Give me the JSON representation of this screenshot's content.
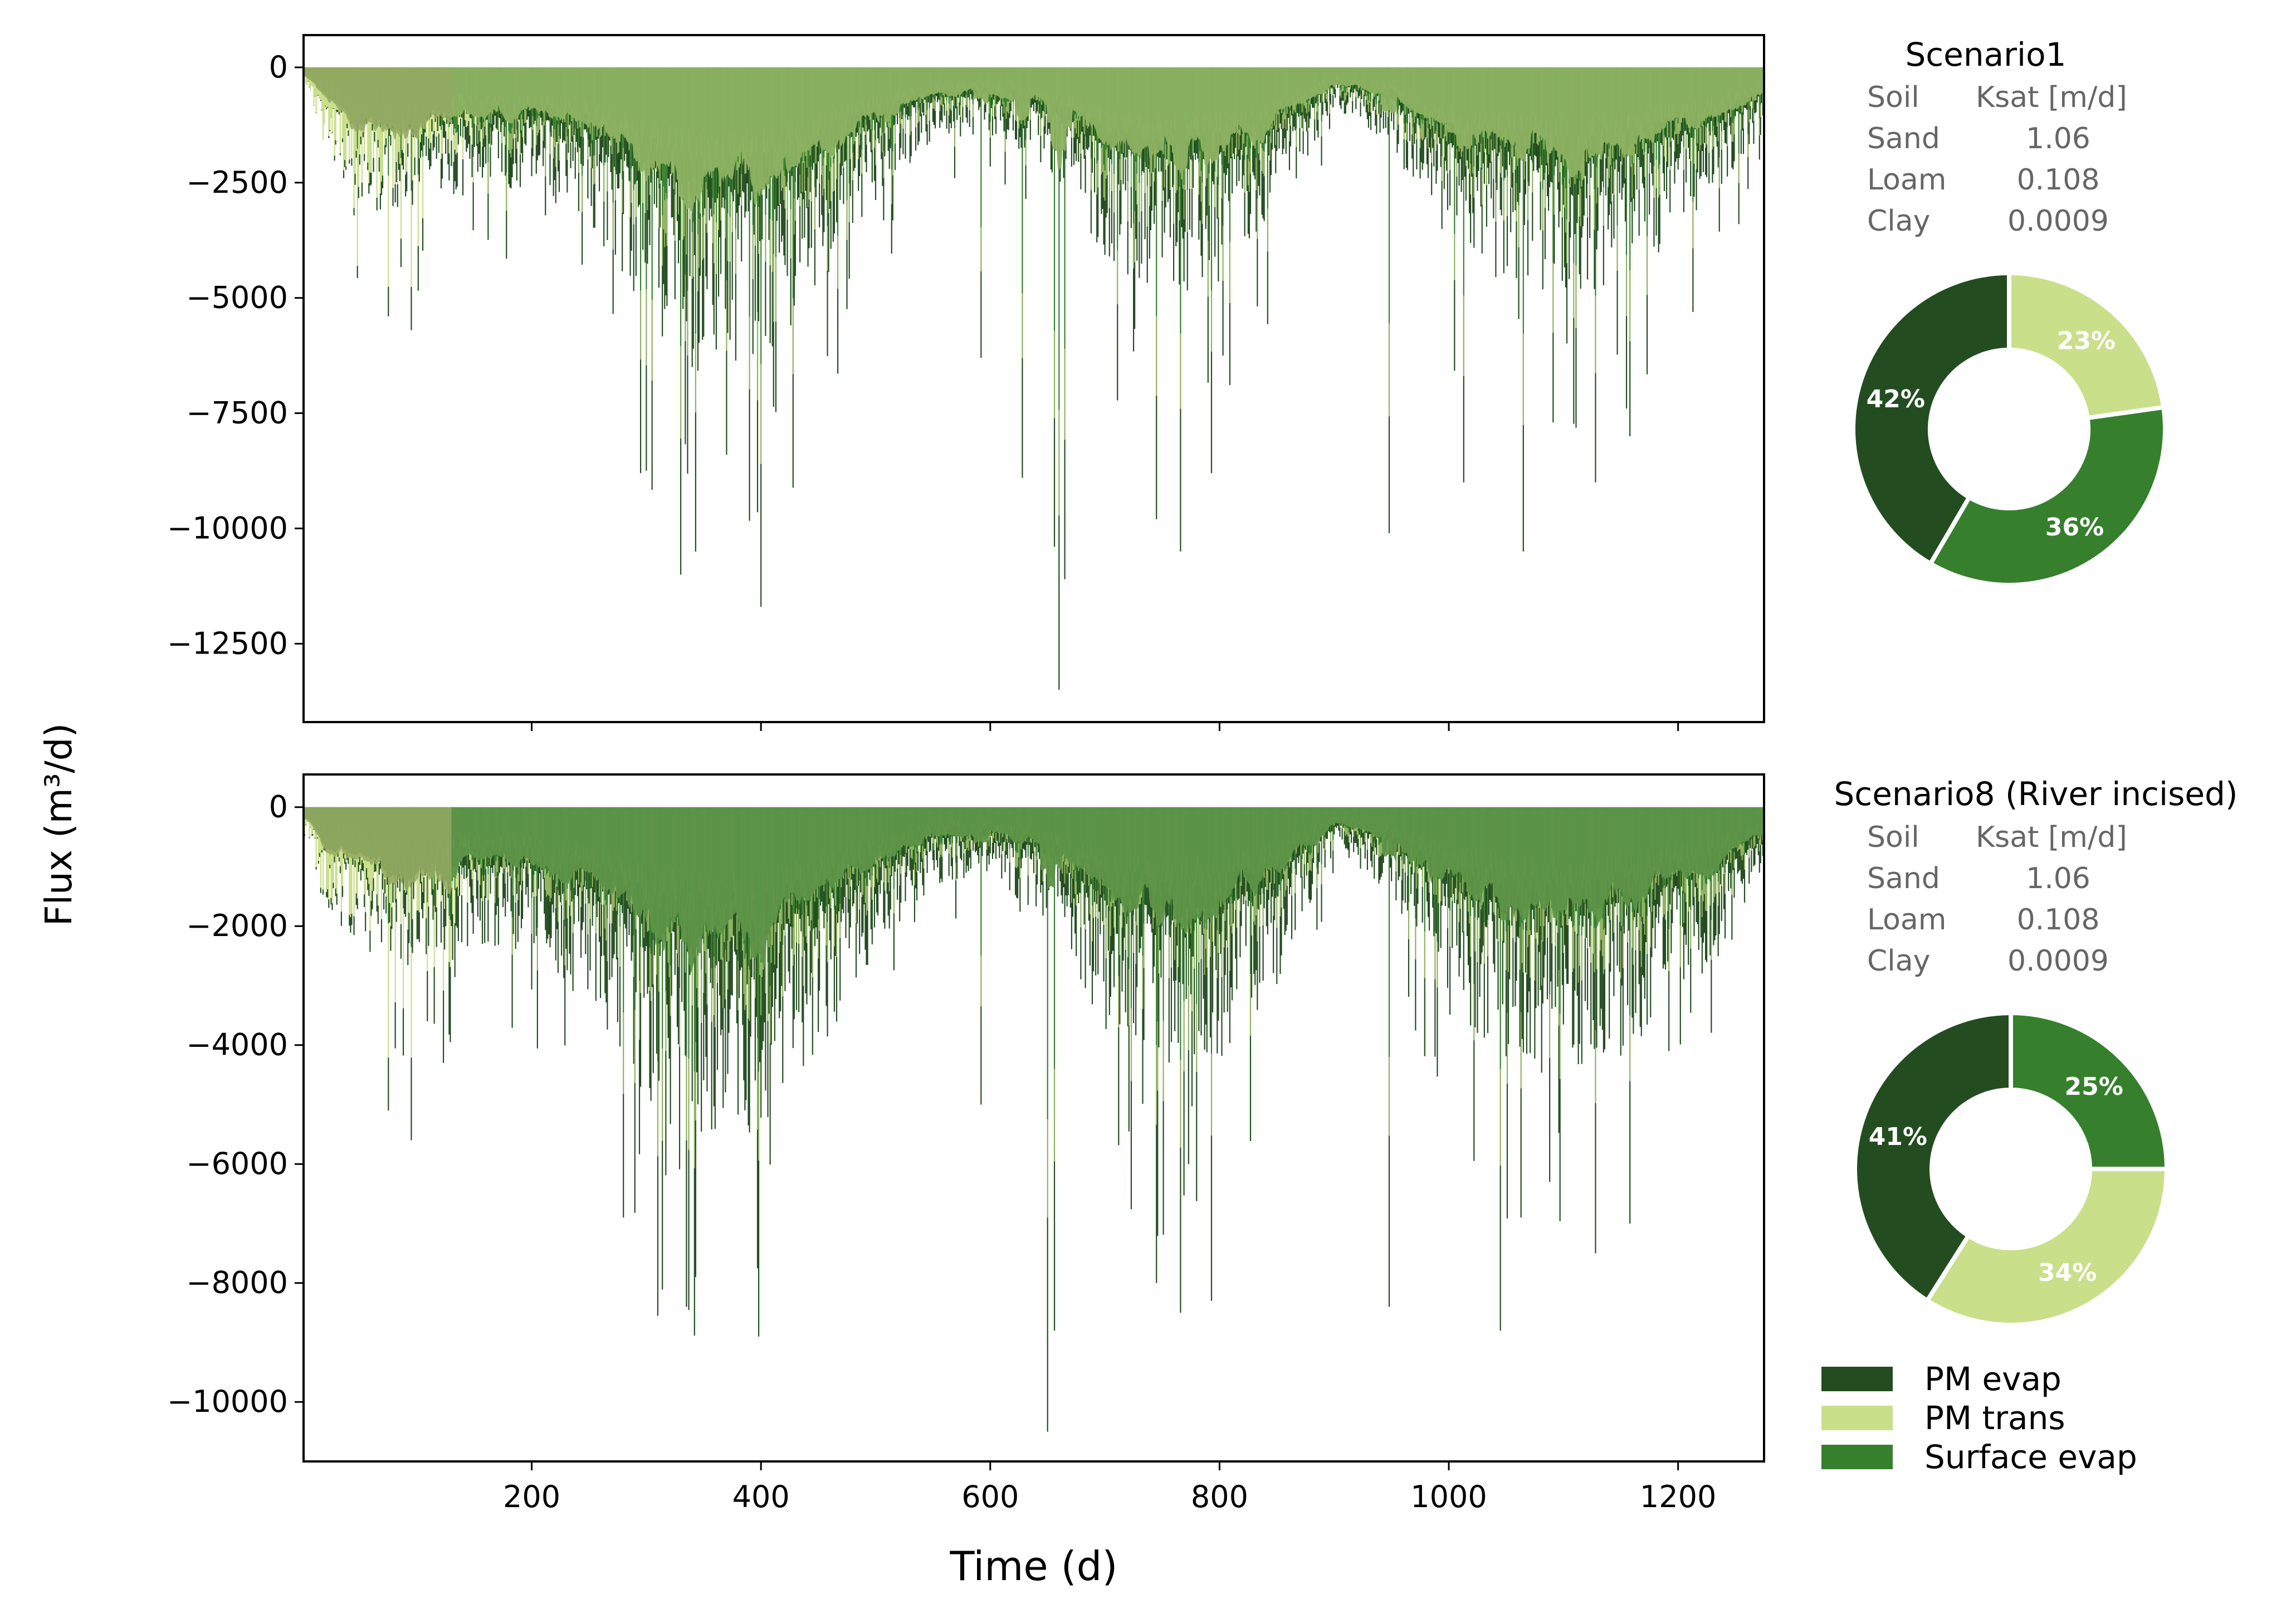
{
  "figure": {
    "ylabel": "Flux (m³/d)",
    "xlabel": "Time (d)"
  },
  "legend": {
    "items": [
      {
        "label": "PM evap",
        "color": "#234d20"
      },
      {
        "label": "PM trans",
        "color": "#c9df8a"
      },
      {
        "label": "Surface evap",
        "color": "#36802d"
      }
    ]
  },
  "chart_data": [
    {
      "type": "area",
      "subtype": "stacked-negative-area",
      "panel": "top",
      "xlim": [
        1,
        1275
      ],
      "ylim": [
        -14200,
        700
      ],
      "yticks": [
        0,
        -2500,
        -5000,
        -7500,
        -10000,
        -12500
      ],
      "ytick_labels": [
        "0",
        "−2500",
        "−5000",
        "−7500",
        "−10000",
        "−12500"
      ],
      "xticks": [
        200,
        400,
        600,
        800,
        1000,
        1200
      ],
      "xtick_labels_visible": false,
      "series_note": "colors: PM evap #234d20, PM trans #c9df8a, Surface evap #36802d",
      "envelope_x": [
        1,
        20,
        60,
        120,
        200,
        260,
        300,
        350,
        400,
        450,
        500,
        550,
        600,
        650,
        700,
        750,
        800,
        850,
        900,
        950,
        1000,
        1050,
        1100,
        1150,
        1200,
        1250,
        1275
      ],
      "envelope_mean_total": [
        -200,
        -1500,
        -2200,
        -2000,
        -1800,
        -2600,
        -3800,
        -4700,
        -4500,
        -3400,
        -2000,
        -1100,
        -1000,
        -1500,
        -3000,
        -3500,
        -3200,
        -2300,
        -600,
        -1200,
        -2800,
        -3300,
        -3600,
        -3300,
        -2600,
        -1700,
        -1000
      ],
      "peaks": [
        {
          "x": 75,
          "y": -5400
        },
        {
          "x": 95,
          "y": -5700
        },
        {
          "x": 295,
          "y": -8800
        },
        {
          "x": 330,
          "y": -11000
        },
        {
          "x": 343,
          "y": -10500
        },
        {
          "x": 370,
          "y": -8400
        },
        {
          "x": 400,
          "y": -11700
        },
        {
          "x": 592,
          "y": -6300
        },
        {
          "x": 628,
          "y": -8900
        },
        {
          "x": 656,
          "y": -10400
        },
        {
          "x": 660,
          "y": -13500
        },
        {
          "x": 665,
          "y": -11100
        },
        {
          "x": 745,
          "y": -9800
        },
        {
          "x": 766,
          "y": -10500
        },
        {
          "x": 793,
          "y": -8800
        },
        {
          "x": 948,
          "y": -10100
        },
        {
          "x": 1013,
          "y": -9000
        },
        {
          "x": 1065,
          "y": -10500
        },
        {
          "x": 1128,
          "y": -9000
        },
        {
          "x": 1158,
          "y": -8000
        }
      ],
      "pie": {
        "title": "Scenario1",
        "table_header": [
          "Soil",
          "Ksat [m/d]"
        ],
        "table_rows": [
          [
            "Sand",
            "1.06"
          ],
          [
            "Loam",
            "0.108"
          ],
          [
            "Clay",
            "0.0009"
          ]
        ],
        "slices": [
          {
            "label": "PM trans",
            "value": 23,
            "text": "23%",
            "color": "#c9df8a"
          },
          {
            "label": "Surface evap",
            "value": 36,
            "text": "36%",
            "color": "#36802d"
          },
          {
            "label": "PM evap",
            "value": 42,
            "text": "42%",
            "color": "#234d20"
          }
        ]
      }
    },
    {
      "type": "area",
      "subtype": "stacked-negative-area",
      "panel": "bottom",
      "xlim": [
        1,
        1275
      ],
      "ylim": [
        -11000,
        550
      ],
      "yticks": [
        0,
        -2000,
        -4000,
        -6000,
        -8000,
        -10000
      ],
      "ytick_labels": [
        "0",
        "−2000",
        "−4000",
        "−6000",
        "−8000",
        "−10000"
      ],
      "xticks": [
        200,
        400,
        600,
        800,
        1000,
        1200
      ],
      "xtick_labels": [
        "200",
        "400",
        "600",
        "800",
        "1000",
        "1200"
      ],
      "envelope_x": [
        1,
        20,
        60,
        120,
        200,
        260,
        300,
        350,
        400,
        450,
        500,
        550,
        600,
        650,
        700,
        750,
        800,
        850,
        900,
        950,
        1000,
        1050,
        1100,
        1150,
        1200,
        1250,
        1275
      ],
      "envelope_mean_total": [
        -150,
        -1300,
        -1900,
        -1800,
        -1700,
        -2500,
        -3500,
        -4000,
        -3800,
        -2900,
        -1700,
        -900,
        -850,
        -1300,
        -2600,
        -3100,
        -3000,
        -2100,
        -500,
        -1000,
        -2400,
        -2900,
        -3200,
        -2900,
        -2300,
        -1500,
        -900
      ],
      "peaks": [
        {
          "x": 75,
          "y": -5100
        },
        {
          "x": 95,
          "y": -5600
        },
        {
          "x": 123,
          "y": -4300
        },
        {
          "x": 280,
          "y": -6900
        },
        {
          "x": 335,
          "y": -8400
        },
        {
          "x": 343,
          "y": -7900
        },
        {
          "x": 398,
          "y": -8900
        },
        {
          "x": 592,
          "y": -5000
        },
        {
          "x": 650,
          "y": -10500
        },
        {
          "x": 656,
          "y": -8800
        },
        {
          "x": 745,
          "y": -8000
        },
        {
          "x": 766,
          "y": -8500
        },
        {
          "x": 793,
          "y": -8300
        },
        {
          "x": 948,
          "y": -8400
        },
        {
          "x": 1045,
          "y": -8800
        },
        {
          "x": 1128,
          "y": -7500
        },
        {
          "x": 1158,
          "y": -7000
        }
      ],
      "pie": {
        "title": "Scenario8 (River incised)",
        "table_header": [
          "Soil",
          "Ksat [m/d]"
        ],
        "table_rows": [
          [
            "Sand",
            "1.06"
          ],
          [
            "Loam",
            "0.108"
          ],
          [
            "Clay",
            "0.0009"
          ]
        ],
        "slices": [
          {
            "label": "Surface evap",
            "value": 25,
            "text": "25%",
            "color": "#36802d"
          },
          {
            "label": "PM trans",
            "value": 34,
            "text": "34%",
            "color": "#c9df8a"
          },
          {
            "label": "PM evap",
            "value": 41,
            "text": "41%",
            "color": "#234d20"
          }
        ]
      }
    }
  ]
}
